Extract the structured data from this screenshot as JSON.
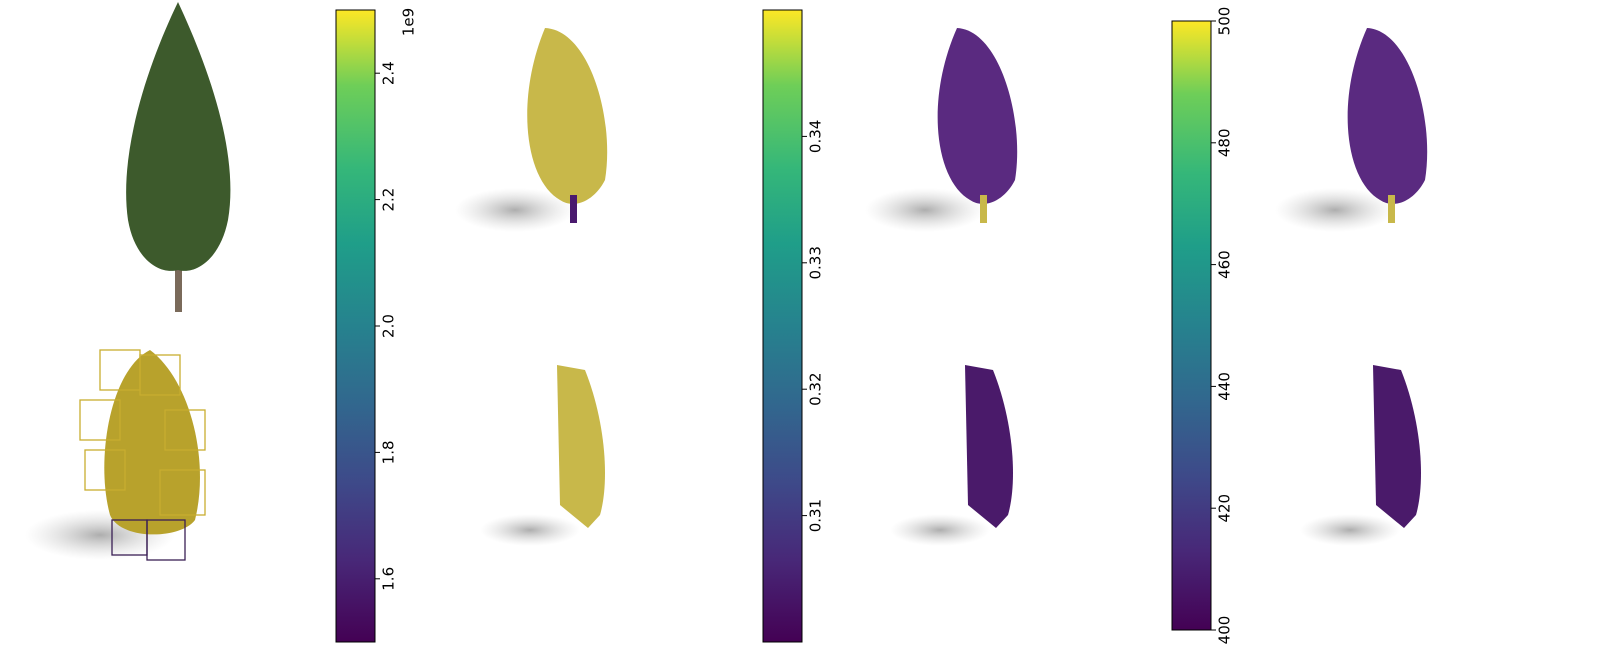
{
  "chart_data": [
    {
      "type": "colorbar",
      "ylim": [
        1.5,
        2.5
      ],
      "yticks": [
        1.6,
        1.8,
        {
          "value": 2.0,
          "label": "2.0"
        },
        2.2,
        2.4
      ],
      "offset_label": "1e9"
    },
    {
      "type": "colorbar",
      "ylim": [
        0.3,
        0.35
      ],
      "yticks": [
        0.31,
        0.32,
        0.33,
        0.34
      ]
    },
    {
      "type": "colorbar",
      "ylim": [
        400,
        500
      ],
      "yticks": [
        400,
        420,
        440,
        460,
        480,
        500
      ]
    }
  ]
}
